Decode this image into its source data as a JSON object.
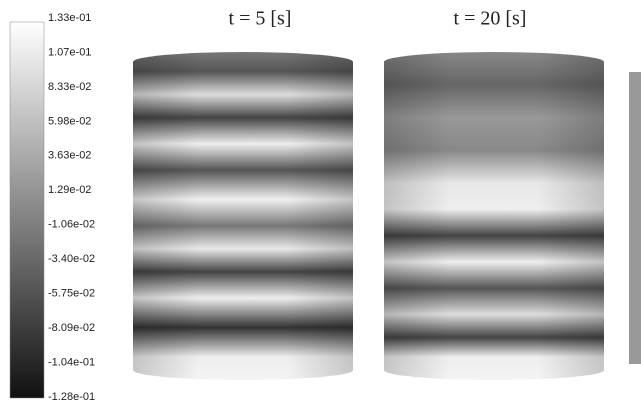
{
  "colorbar": {
    "labels": [
      "1.33e-01",
      "1.07e-01",
      "8.33e-02",
      "5.98e-02",
      "3.63e-02",
      "1.29e-02",
      "-1.06e-02",
      "-3.40e-02",
      "-5.75e-02",
      "-8.09e-02",
      "-1.04e-01",
      "-1.28e-01"
    ]
  },
  "panels": [
    {
      "title": "t = 5 [s]"
    },
    {
      "title": "t = 20 [s]"
    }
  ]
}
